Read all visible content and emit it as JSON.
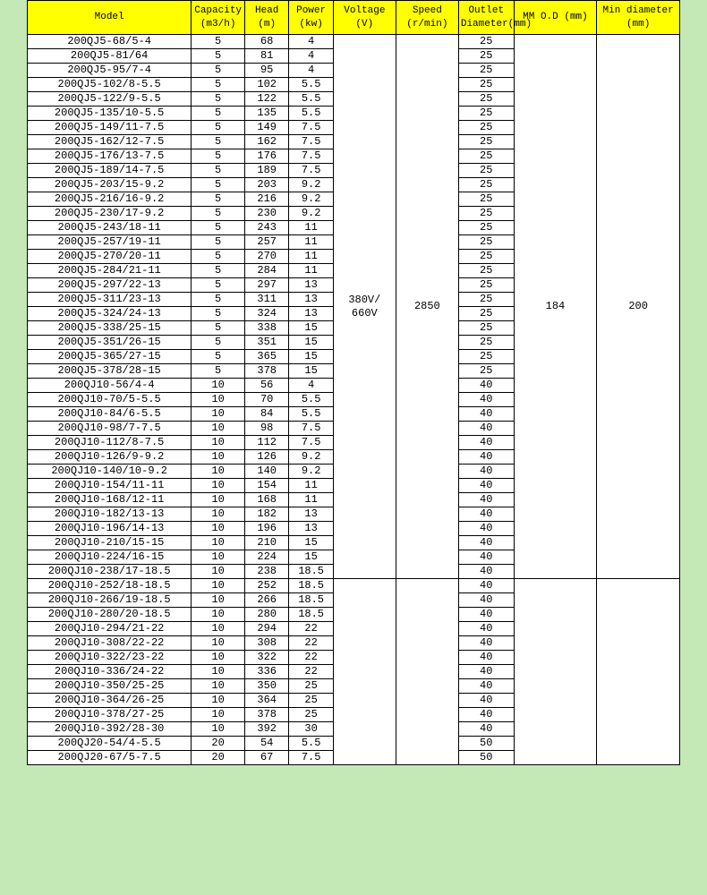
{
  "table": {
    "headers": {
      "model": "Model",
      "capacity": "Capacity (m3/h)",
      "head": "Head (m)",
      "power": "Power (kw)",
      "voltage": "Voltage (V)",
      "speed": "Speed (r/min)",
      "outlet": "Outlet Diameter(mm)",
      "mmod": "MM O.D (mm)",
      "mindia": "Min diameter (mm)"
    },
    "shared": {
      "voltage": "380V/ 660V",
      "speed": "2850",
      "mmod": "184",
      "mindia": "200"
    },
    "rows": [
      {
        "model": "200QJ5-68/5-4",
        "cap": "5",
        "head": "68",
        "power": "4",
        "outlet": "25"
      },
      {
        "model": "200QJ5-81/64",
        "cap": "5",
        "head": "81",
        "power": "4",
        "outlet": "25"
      },
      {
        "model": "200QJ5-95/7-4",
        "cap": "5",
        "head": "95",
        "power": "4",
        "outlet": "25"
      },
      {
        "model": "200QJ5-102/8-5.5",
        "cap": "5",
        "head": "102",
        "power": "5.5",
        "outlet": "25"
      },
      {
        "model": "200QJ5-122/9-5.5",
        "cap": "5",
        "head": "122",
        "power": "5.5",
        "outlet": "25"
      },
      {
        "model": "200QJ5-135/10-5.5",
        "cap": "5",
        "head": "135",
        "power": "5.5",
        "outlet": "25"
      },
      {
        "model": "200QJ5-149/11-7.5",
        "cap": "5",
        "head": "149",
        "power": "7.5",
        "outlet": "25"
      },
      {
        "model": "200QJ5-162/12-7.5",
        "cap": "5",
        "head": "162",
        "power": "7.5",
        "outlet": "25"
      },
      {
        "model": "200QJ5-176/13-7.5",
        "cap": "5",
        "head": "176",
        "power": "7.5",
        "outlet": "25"
      },
      {
        "model": "200QJ5-189/14-7.5",
        "cap": "5",
        "head": "189",
        "power": "7.5",
        "outlet": "25"
      },
      {
        "model": "200QJ5-203/15-9.2",
        "cap": "5",
        "head": "203",
        "power": "9.2",
        "outlet": "25"
      },
      {
        "model": "200QJ5-216/16-9.2",
        "cap": "5",
        "head": "216",
        "power": "9.2",
        "outlet": "25"
      },
      {
        "model": "200QJ5-230/17-9.2",
        "cap": "5",
        "head": "230",
        "power": "9.2",
        "outlet": "25"
      },
      {
        "model": "200QJ5-243/18-11",
        "cap": "5",
        "head": "243",
        "power": "11",
        "outlet": "25"
      },
      {
        "model": "200QJ5-257/19-11",
        "cap": "5",
        "head": "257",
        "power": "11",
        "outlet": "25"
      },
      {
        "model": "200QJ5-270/20-11",
        "cap": "5",
        "head": "270",
        "power": "11",
        "outlet": "25"
      },
      {
        "model": "200QJ5-284/21-11",
        "cap": "5",
        "head": "284",
        "power": "11",
        "outlet": "25"
      },
      {
        "model": "200QJ5-297/22-13",
        "cap": "5",
        "head": "297",
        "power": "13",
        "outlet": "25"
      },
      {
        "model": "200QJ5-311/23-13",
        "cap": "5",
        "head": "311",
        "power": "13",
        "outlet": "25"
      },
      {
        "model": "200QJ5-324/24-13",
        "cap": "5",
        "head": "324",
        "power": "13",
        "outlet": "25"
      },
      {
        "model": "200QJ5-338/25-15",
        "cap": "5",
        "head": "338",
        "power": "15",
        "outlet": "25"
      },
      {
        "model": "200QJ5-351/26-15",
        "cap": "5",
        "head": "351",
        "power": "15",
        "outlet": "25"
      },
      {
        "model": "200QJ5-365/27-15",
        "cap": "5",
        "head": "365",
        "power": "15",
        "outlet": "25"
      },
      {
        "model": "200QJ5-378/28-15",
        "cap": "5",
        "head": "378",
        "power": "15",
        "outlet": "25"
      },
      {
        "model": "200QJ10-56/4-4",
        "cap": "10",
        "head": "56",
        "power": "4",
        "outlet": "40"
      },
      {
        "model": "200QJ10-70/5-5.5",
        "cap": "10",
        "head": "70",
        "power": "5.5",
        "outlet": "40"
      },
      {
        "model": "200QJ10-84/6-5.5",
        "cap": "10",
        "head": "84",
        "power": "5.5",
        "outlet": "40"
      },
      {
        "model": "200QJ10-98/7-7.5",
        "cap": "10",
        "head": "98",
        "power": "7.5",
        "outlet": "40"
      },
      {
        "model": "200QJ10-112/8-7.5",
        "cap": "10",
        "head": "112",
        "power": "7.5",
        "outlet": "40"
      },
      {
        "model": "200QJ10-126/9-9.2",
        "cap": "10",
        "head": "126",
        "power": "9.2",
        "outlet": "40"
      },
      {
        "model": "200QJ10-140/10-9.2",
        "cap": "10",
        "head": "140",
        "power": "9.2",
        "outlet": "40"
      },
      {
        "model": "200QJ10-154/11-11",
        "cap": "10",
        "head": "154",
        "power": "11",
        "outlet": "40"
      },
      {
        "model": "200QJ10-168/12-11",
        "cap": "10",
        "head": "168",
        "power": "11",
        "outlet": "40"
      },
      {
        "model": "200QJ10-182/13-13",
        "cap": "10",
        "head": "182",
        "power": "13",
        "outlet": "40"
      },
      {
        "model": "200QJ10-196/14-13",
        "cap": "10",
        "head": "196",
        "power": "13",
        "outlet": "40"
      },
      {
        "model": "200QJ10-210/15-15",
        "cap": "10",
        "head": "210",
        "power": "15",
        "outlet": "40"
      },
      {
        "model": "200QJ10-224/16-15",
        "cap": "10",
        "head": "224",
        "power": "15",
        "outlet": "40"
      },
      {
        "model": "200QJ10-238/17-18.5",
        "cap": "10",
        "head": "238",
        "power": "18.5",
        "outlet": "40"
      },
      {
        "model": "200QJ10-252/18-18.5",
        "cap": "10",
        "head": "252",
        "power": "18.5",
        "outlet": "40"
      },
      {
        "model": "200QJ10-266/19-18.5",
        "cap": "10",
        "head": "266",
        "power": "18.5",
        "outlet": "40"
      },
      {
        "model": "200QJ10-280/20-18.5",
        "cap": "10",
        "head": "280",
        "power": "18.5",
        "outlet": "40"
      },
      {
        "model": "200QJ10-294/21-22",
        "cap": "10",
        "head": "294",
        "power": "22",
        "outlet": "40"
      },
      {
        "model": "200QJ10-308/22-22",
        "cap": "10",
        "head": "308",
        "power": "22",
        "outlet": "40"
      },
      {
        "model": "200QJ10-322/23-22",
        "cap": "10",
        "head": "322",
        "power": "22",
        "outlet": "40"
      },
      {
        "model": "200QJ10-336/24-22",
        "cap": "10",
        "head": "336",
        "power": "22",
        "outlet": "40"
      },
      {
        "model": "200QJ10-350/25-25",
        "cap": "10",
        "head": "350",
        "power": "25",
        "outlet": "40"
      },
      {
        "model": "200QJ10-364/26-25",
        "cap": "10",
        "head": "364",
        "power": "25",
        "outlet": "40"
      },
      {
        "model": "200QJ10-378/27-25",
        "cap": "10",
        "head": "378",
        "power": "25",
        "outlet": "40"
      },
      {
        "model": "200QJ10-392/28-30",
        "cap": "10",
        "head": "392",
        "power": "30",
        "outlet": "40"
      },
      {
        "model": "200QJ20-54/4-5.5",
        "cap": "20",
        "head": "54",
        "power": "5.5",
        "outlet": "50"
      },
      {
        "model": "200QJ20-67/5-7.5",
        "cap": "20",
        "head": "67",
        "power": "7.5",
        "outlet": "50"
      }
    ],
    "section1_rows": 38,
    "section2_rows": 13
  },
  "colors": {
    "page_bg": "#c5e8b7",
    "header_bg": "#ffff00",
    "cell_bg": "#ffffff",
    "border": "#000000"
  }
}
